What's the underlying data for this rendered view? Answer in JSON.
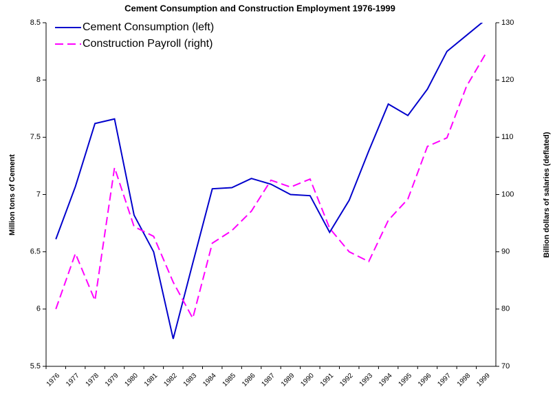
{
  "chart_data": {
    "type": "line",
    "title": "Cement Consumption and Construction Employment 1976-1999",
    "y_label": "Million tons of Cement",
    "y2_label": "Billion dollars of salaries (deflated)",
    "categories": [
      "1976",
      "1977",
      "1978",
      "1979",
      "1980",
      "1981",
      "1982",
      "1983",
      "1984",
      "1985",
      "1986",
      "1987",
      "1989",
      "1990",
      "1991",
      "1992",
      "1993",
      "1994",
      "1995",
      "1996",
      "1997",
      "1998",
      "1999"
    ],
    "series": [
      {
        "name": "Cement Consumption (left)",
        "color": "#0000cc",
        "dash": false,
        "values": [
          6.61,
          7.07,
          7.62,
          7.66,
          6.82,
          6.5,
          5.74,
          6.4,
          7.05,
          7.06,
          7.14,
          7.09,
          7.0,
          6.99,
          6.67,
          6.95,
          7.38,
          7.79,
          7.69,
          7.92,
          8.25,
          8.39,
          8.53
        ]
      },
      {
        "name": "Construction Payroll (right)",
        "color": "#ff00ff",
        "dash": true,
        "axis": "y2",
        "values": [
          80,
          89.7,
          81.5,
          104.7,
          94.4,
          92.7,
          84.7,
          78.4,
          91.5,
          93.7,
          97.1,
          102.5,
          101.3,
          102.7,
          94.1,
          90,
          88.3,
          95.5,
          99.2,
          108.4,
          109.9,
          118.9,
          124.7
        ]
      }
    ],
    "ylim": [
      5.5,
      8.5
    ],
    "yticks": [
      5.5,
      6,
      6.5,
      7,
      7.5,
      8,
      8.5
    ],
    "y2lim": [
      70,
      130
    ],
    "y2ticks": [
      70,
      80,
      90,
      100,
      110,
      120,
      130
    ],
    "legend": "top-left"
  }
}
